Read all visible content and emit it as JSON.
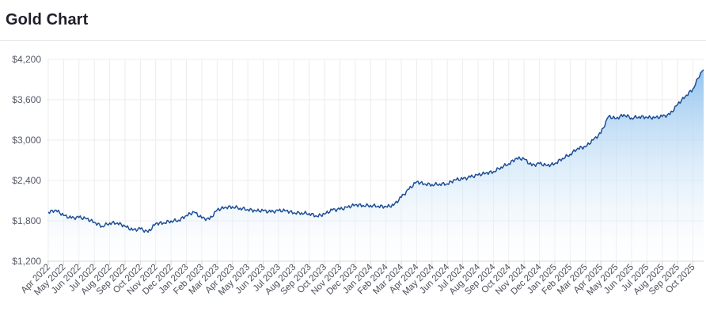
{
  "header": {
    "title": "Gold Chart"
  },
  "colors": {
    "line": "#1e4f96",
    "area_top": "#8fc2ee",
    "area_bottom": "#ffffff",
    "grid": "#ececec",
    "axis": "#d7d7d7"
  },
  "chart_data": {
    "type": "area",
    "title": "",
    "xlabel": "",
    "ylabel": "",
    "ylim": [
      1200,
      4200
    ],
    "y_ticks": [
      1200,
      1800,
      2400,
      3000,
      3600,
      4200
    ],
    "y_tick_labels": [
      "$1,200",
      "$1,800",
      "$2,400",
      "$3,000",
      "$3,600",
      "$4,200"
    ],
    "x_tick_labels": [
      "Apr 2022",
      "May 2022",
      "Jun 2022",
      "Jul 2022",
      "Aug 2022",
      "Sep 2022",
      "Oct 2022",
      "Nov 2022",
      "Dec 2022",
      "Jan 2023",
      "Feb 2023",
      "Mar 2023",
      "Apr 2023",
      "May 2023",
      "Jun 2023",
      "Jul 2023",
      "Aug 2023",
      "Sep 2023",
      "Oct 2023",
      "Nov 2023",
      "Dec 2023",
      "Jan 2024",
      "Feb 2024",
      "Mar 2024",
      "Apr 2024",
      "May 2024",
      "Jun 2024",
      "Jul 2024",
      "Aug 2024",
      "Sep 2024",
      "Oct 2024",
      "Nov 2024",
      "Dec 2024",
      "Jan 2025",
      "Feb 2025",
      "Mar 2025",
      "Apr 2025",
      "May 2025",
      "Jun 2025",
      "Jul 2025",
      "Aug 2025",
      "Sep 2025",
      "Oct 2025"
    ],
    "grid": true,
    "legend": "none",
    "series": [
      {
        "x": [
          "Apr 2022",
          "Apr 2022",
          "May 2022",
          "May 2022",
          "Jun 2022",
          "Jun 2022",
          "Jul 2022",
          "Jul 2022",
          "Aug 2022",
          "Aug 2022",
          "Sep 2022",
          "Sep 2022",
          "Oct 2022",
          "Oct 2022",
          "Nov 2022",
          "Nov 2022",
          "Dec 2022",
          "Dec 2022",
          "Jan 2023",
          "Jan 2023",
          "Feb 2023",
          "Feb 2023",
          "Mar 2023",
          "Mar 2023",
          "Apr 2023",
          "Apr 2023",
          "May 2023",
          "May 2023",
          "Jun 2023",
          "Jun 2023",
          "Jul 2023",
          "Jul 2023",
          "Aug 2023",
          "Aug 2023",
          "Sep 2023",
          "Sep 2023",
          "Oct 2023",
          "Oct 2023",
          "Nov 2023",
          "Nov 2023",
          "Dec 2023",
          "Dec 2023",
          "Jan 2024",
          "Jan 2024",
          "Feb 2024",
          "Feb 2024",
          "Mar 2024",
          "Mar 2024",
          "Apr 2024",
          "Apr 2024",
          "May 2024",
          "May 2024",
          "Jun 2024",
          "Jun 2024",
          "Jul 2024",
          "Jul 2024",
          "Aug 2024",
          "Aug 2024",
          "Sep 2024",
          "Sep 2024",
          "Oct 2024",
          "Oct 2024",
          "Nov 2024",
          "Nov 2024",
          "Dec 2024",
          "Dec 2024",
          "Jan 2025",
          "Jan 2025",
          "Feb 2025",
          "Feb 2025",
          "Mar 2025",
          "Mar 2025",
          "Apr 2025",
          "Apr 2025",
          "May 2025",
          "May 2025",
          "Jun 2025",
          "Jun 2025",
          "Jul 2025",
          "Jul 2025",
          "Aug 2025",
          "Aug 2025",
          "Sep 2025",
          "Sep 2025",
          "Oct 2025",
          "Oct 2025"
        ],
        "values": [
          1930,
          1960,
          1880,
          1840,
          1850,
          1830,
          1780,
          1720,
          1770,
          1770,
          1720,
          1660,
          1680,
          1630,
          1760,
          1770,
          1800,
          1810,
          1880,
          1930,
          1840,
          1820,
          1960,
          2000,
          2010,
          1990,
          1970,
          1950,
          1950,
          1930,
          1950,
          1950,
          1920,
          1920,
          1910,
          1870,
          1900,
          1960,
          1970,
          2000,
          2040,
          2030,
          2030,
          2020,
          2010,
          2030,
          2150,
          2270,
          2380,
          2350,
          2340,
          2350,
          2350,
          2410,
          2420,
          2450,
          2480,
          2510,
          2530,
          2600,
          2650,
          2730,
          2720,
          2620,
          2650,
          2620,
          2650,
          2730,
          2790,
          2880,
          2900,
          3000,
          3100,
          3350,
          3320,
          3380,
          3330,
          3350,
          3340,
          3330,
          3350,
          3380,
          3530,
          3650,
          3760,
          4000
        ]
      }
    ]
  }
}
